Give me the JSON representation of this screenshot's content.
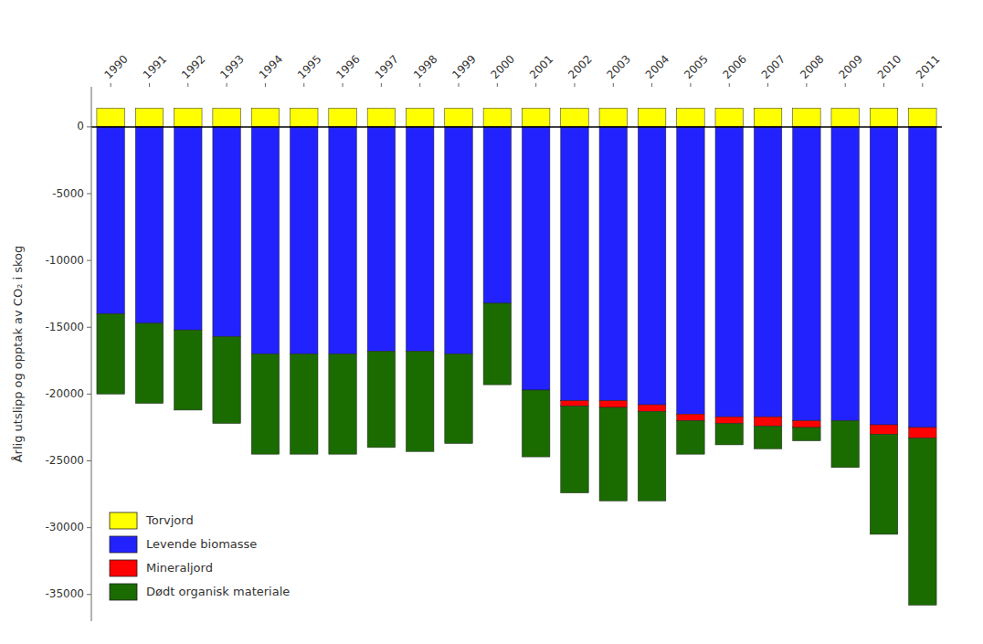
{
  "chart_data": {
    "type": "bar",
    "stacked": true,
    "y_label": "Årlig utslipp og opptak av CO₂ i skog",
    "categories": [
      "1990",
      "1991",
      "1992",
      "1993",
      "1994",
      "1995",
      "1996",
      "1997",
      "1998",
      "1999",
      "2000",
      "2001",
      "2002",
      "2003",
      "2004",
      "2005",
      "2006",
      "2007",
      "2008",
      "2009",
      "2010",
      "2011"
    ],
    "series": [
      {
        "name": "Torvjord",
        "color": "#FFFF00",
        "values": [
          1400,
          1400,
          1400,
          1400,
          1400,
          1400,
          1400,
          1400,
          1400,
          1400,
          1400,
          1400,
          1400,
          1400,
          1400,
          1400,
          1400,
          1400,
          1400,
          1400,
          1400,
          1400
        ]
      },
      {
        "name": "Levende biomasse",
        "color": "#2222FF",
        "values": [
          -14000,
          -14700,
          -15200,
          -15700,
          -17000,
          -17000,
          -17000,
          -16800,
          -16800,
          -17000,
          -13200,
          -19700,
          -20500,
          -20500,
          -20800,
          -21500,
          -21700,
          -21700,
          -22000,
          -22000,
          -22300,
          -22500
        ]
      },
      {
        "name": "Mineraljord",
        "color": "#FF0000",
        "values": [
          0,
          0,
          0,
          0,
          0,
          0,
          0,
          0,
          0,
          0,
          0,
          0,
          -400,
          -500,
          -500,
          -500,
          -500,
          -700,
          -500,
          0,
          -700,
          -800
        ]
      },
      {
        "name": "Dødt organisk materiale",
        "color": "#1A6B00",
        "values": [
          -6000,
          -6000,
          -6000,
          -6500,
          -7500,
          -7500,
          -7500,
          -7200,
          -7500,
          -6700,
          -6100,
          -5000,
          -6500,
          -7000,
          -6700,
          -2500,
          -1600,
          -1700,
          -1000,
          -3500,
          -7500,
          -12500
        ]
      }
    ],
    "ylim": [
      -37000,
      3000
    ],
    "yticks": [
      0,
      -5000,
      -10000,
      -15000,
      -20000,
      -25000,
      -30000,
      -35000
    ],
    "grid": false,
    "legend": "lower left"
  }
}
